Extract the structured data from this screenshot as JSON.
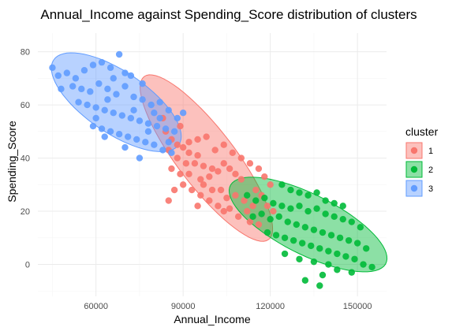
{
  "chart_data": {
    "type": "scatter",
    "title": "Annual_Income against Spending_Score distribution of clusters",
    "xlabel": "Annual_Income",
    "ylabel": "Spending_Score",
    "xlim": [
      40000,
      160000
    ],
    "ylim": [
      -12,
      87
    ],
    "x_ticks": [
      60000,
      90000,
      120000,
      150000
    ],
    "x_tick_labels": [
      "60000",
      "90000",
      "120000",
      "150000"
    ],
    "y_ticks": [
      0,
      20,
      40,
      60,
      80
    ],
    "y_tick_labels": [
      "0",
      "20",
      "40",
      "60",
      "80"
    ],
    "grid": true,
    "legend": {
      "title": "cluster",
      "position": "right"
    },
    "series": [
      {
        "name": "1",
        "color": "#F8766D",
        "ellipse": {
          "center": [
            98000,
            40
          ],
          "semi_major_x": [
            22000,
            -30
          ],
          "semi_minor_x": [
            -6000,
            -9
          ]
        },
        "points": [
          [
            84000,
            50
          ],
          [
            86000,
            47
          ],
          [
            88000,
            45
          ],
          [
            85000,
            43
          ],
          [
            90000,
            44
          ],
          [
            92000,
            42
          ],
          [
            95000,
            41
          ],
          [
            88000,
            40
          ],
          [
            91000,
            38
          ],
          [
            94000,
            38
          ],
          [
            97000,
            37
          ],
          [
            100000,
            36
          ],
          [
            86000,
            36
          ],
          [
            89000,
            34
          ],
          [
            92000,
            34
          ],
          [
            96000,
            32
          ],
          [
            99000,
            33
          ],
          [
            102000,
            35
          ],
          [
            104000,
            38
          ],
          [
            106000,
            36
          ],
          [
            108000,
            34
          ],
          [
            110000,
            32
          ],
          [
            97000,
            30
          ],
          [
            100000,
            28
          ],
          [
            103000,
            28
          ],
          [
            105000,
            25
          ],
          [
            108000,
            26
          ],
          [
            111000,
            24
          ],
          [
            96000,
            26
          ],
          [
            99000,
            24
          ],
          [
            102000,
            22
          ],
          [
            104000,
            20
          ],
          [
            106000,
            21
          ],
          [
            109000,
            18
          ],
          [
            112000,
            20
          ],
          [
            114000,
            22
          ],
          [
            95000,
            22
          ],
          [
            93000,
            28
          ],
          [
            90000,
            30
          ],
          [
            87000,
            28
          ],
          [
            85000,
            24
          ],
          [
            101000,
            43
          ],
          [
            104000,
            45
          ],
          [
            107000,
            42
          ],
          [
            110000,
            40
          ],
          [
            113000,
            38
          ],
          [
            116000,
            36
          ],
          [
            118000,
            33
          ],
          [
            120000,
            30
          ],
          [
            115000,
            28
          ],
          [
            117000,
            26
          ],
          [
            119000,
            22
          ],
          [
            121000,
            20
          ],
          [
            113000,
            16
          ],
          [
            116000,
            15
          ],
          [
            98000,
            48
          ],
          [
            95000,
            47
          ],
          [
            92000,
            46
          ],
          [
            89000,
            52
          ],
          [
            83000,
            55
          ]
        ]
      },
      {
        "name": "2",
        "color": "#00BA38",
        "ellipse": {
          "center": [
            133000,
            15
          ],
          "semi_major_x": [
            27000,
            -14
          ],
          "semi_minor_x": [
            -3000,
            -11
          ]
        },
        "points": [
          [
            112000,
            26
          ],
          [
            115000,
            24
          ],
          [
            118000,
            25
          ],
          [
            121000,
            23
          ],
          [
            124000,
            22
          ],
          [
            127000,
            21
          ],
          [
            130000,
            22
          ],
          [
            133000,
            20
          ],
          [
            136000,
            21
          ],
          [
            139000,
            19
          ],
          [
            142000,
            18
          ],
          [
            145000,
            17
          ],
          [
            148000,
            16
          ],
          [
            151000,
            14
          ],
          [
            114000,
            18
          ],
          [
            117000,
            19
          ],
          [
            120000,
            17
          ],
          [
            123000,
            18
          ],
          [
            126000,
            16
          ],
          [
            129000,
            15
          ],
          [
            132000,
            14
          ],
          [
            135000,
            13
          ],
          [
            138000,
            12
          ],
          [
            141000,
            11
          ],
          [
            144000,
            10
          ],
          [
            147000,
            9
          ],
          [
            150000,
            8
          ],
          [
            153000,
            6
          ],
          [
            119000,
            12
          ],
          [
            122000,
            11
          ],
          [
            125000,
            10
          ],
          [
            128000,
            9
          ],
          [
            131000,
            8
          ],
          [
            134000,
            7
          ],
          [
            137000,
            6
          ],
          [
            140000,
            5
          ],
          [
            143000,
            4
          ],
          [
            146000,
            3
          ],
          [
            149000,
            2
          ],
          [
            152000,
            0
          ],
          [
            124000,
            30
          ],
          [
            127000,
            28
          ],
          [
            130000,
            27
          ],
          [
            133000,
            26
          ],
          [
            136000,
            27
          ],
          [
            139000,
            24
          ],
          [
            142000,
            23
          ],
          [
            145000,
            22
          ],
          [
            125000,
            4
          ],
          [
            130000,
            2
          ],
          [
            135000,
            1
          ],
          [
            140000,
            0
          ],
          [
            143000,
            -2
          ],
          [
            138000,
            -4
          ],
          [
            148000,
            -3
          ],
          [
            155000,
            -1
          ],
          [
            132000,
            -6
          ],
          [
            137000,
            -8
          ]
        ]
      },
      {
        "name": "3",
        "color": "#619CFF",
        "ellipse": {
          "center": [
            67000,
            61
          ],
          "semi_major_x": [
            22000,
            -15
          ],
          "semi_minor_x": [
            -4000,
            -11
          ]
        },
        "points": [
          [
            45000,
            74
          ],
          [
            47000,
            71
          ],
          [
            50000,
            72
          ],
          [
            53000,
            70
          ],
          [
            56000,
            73
          ],
          [
            59000,
            75
          ],
          [
            62000,
            76
          ],
          [
            65000,
            74
          ],
          [
            68000,
            79
          ],
          [
            70000,
            72
          ],
          [
            52000,
            67
          ],
          [
            55000,
            66
          ],
          [
            58000,
            65
          ],
          [
            61000,
            68
          ],
          [
            64000,
            66
          ],
          [
            67000,
            64
          ],
          [
            70000,
            67
          ],
          [
            73000,
            63
          ],
          [
            76000,
            62
          ],
          [
            79000,
            60
          ],
          [
            82000,
            61
          ],
          [
            85000,
            58
          ],
          [
            54000,
            61
          ],
          [
            57000,
            60
          ],
          [
            60000,
            59
          ],
          [
            63000,
            58
          ],
          [
            66000,
            57
          ],
          [
            69000,
            56
          ],
          [
            72000,
            55
          ],
          [
            75000,
            54
          ],
          [
            78000,
            53
          ],
          [
            81000,
            52
          ],
          [
            84000,
            51
          ],
          [
            87000,
            50
          ],
          [
            59000,
            52
          ],
          [
            62000,
            51
          ],
          [
            65000,
            50
          ],
          [
            68000,
            49
          ],
          [
            71000,
            48
          ],
          [
            74000,
            47
          ],
          [
            77000,
            46
          ],
          [
            80000,
            45
          ],
          [
            83000,
            43
          ],
          [
            86000,
            42
          ],
          [
            88000,
            55
          ],
          [
            90000,
            57
          ],
          [
            66000,
            70
          ],
          [
            72000,
            71
          ],
          [
            76000,
            68
          ],
          [
            60000,
            55
          ],
          [
            63000,
            48
          ],
          [
            70000,
            44
          ],
          [
            78000,
            50
          ],
          [
            82000,
            55
          ],
          [
            48000,
            66
          ],
          [
            64000,
            62
          ],
          [
            73000,
            58
          ],
          [
            80000,
            57
          ],
          [
            85000,
            46
          ],
          [
            75000,
            40
          ]
        ]
      }
    ]
  }
}
